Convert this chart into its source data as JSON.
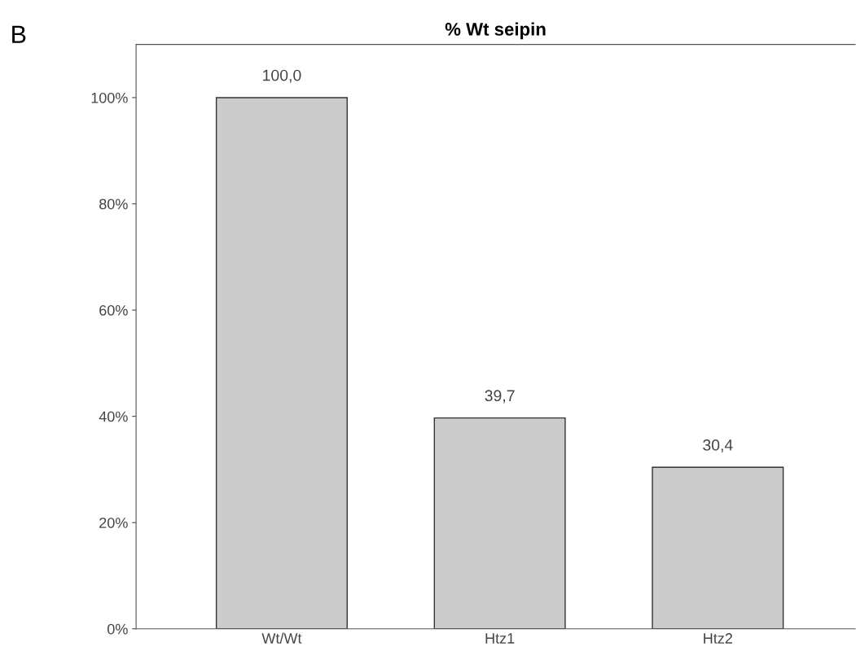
{
  "chart_data": {
    "type": "bar",
    "title": "% Wt seipin",
    "categories": [
      "Wt/Wt",
      "Htz1",
      "Htz2"
    ],
    "values": [
      100.0,
      39.7,
      30.4
    ],
    "color": "#cccccc",
    "value_labels": [
      "100,0",
      "39,7",
      "30,4"
    ],
    "ylim": [
      0,
      110
    ],
    "yticks": [
      {
        "value": 0,
        "label": "0%"
      },
      {
        "value": 20,
        "label": "20%"
      },
      {
        "value": 40,
        "label": "40%"
      },
      {
        "value": 60,
        "label": "60%"
      },
      {
        "value": 80,
        "label": "80%"
      },
      {
        "value": 100,
        "label": "100%"
      }
    ],
    "annotations": [
      "B"
    ],
    "grid": false,
    "legend": false
  }
}
